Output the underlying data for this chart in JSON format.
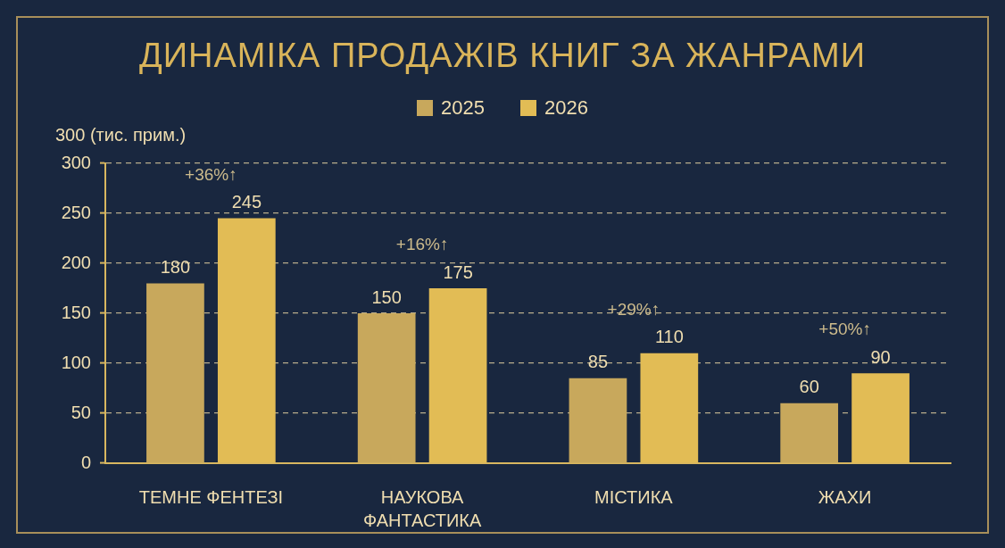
{
  "chart_data": {
    "type": "bar",
    "title": "ДИНАМІКА ПРОДАЖІВ КНИГ ЗА ЖАНРАМИ",
    "ylabel": "300 (тис. прим.)",
    "categories": [
      "ТЕМНЕ ФЕНТЕЗІ",
      "НАУКОВА ФАНТАСТИКА",
      "МІСТИКА",
      "ЖАХИ"
    ],
    "series": [
      {
        "name": "2025",
        "color": "#c8a85c",
        "values": [
          180,
          150,
          85,
          60
        ]
      },
      {
        "name": "2026",
        "color": "#e2bc55",
        "values": [
          245,
          175,
          110,
          90
        ]
      }
    ],
    "ylim": [
      0,
      300
    ],
    "yticks": [
      0,
      50,
      100,
      150,
      200,
      250,
      300
    ],
    "grid": "y",
    "legend": "top",
    "data_labels": true,
    "annotations": [
      "+36%↑",
      "+16%↑",
      "+29%↑",
      "+50%↑"
    ]
  }
}
